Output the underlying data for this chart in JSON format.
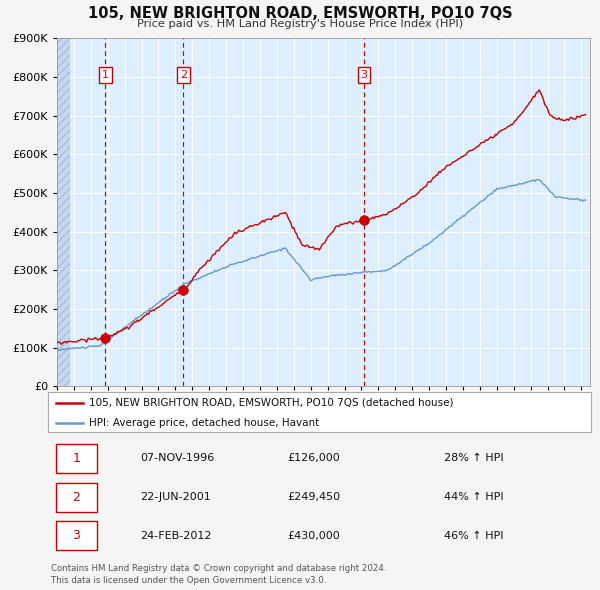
{
  "title": "105, NEW BRIGHTON ROAD, EMSWORTH, PO10 7QS",
  "subtitle": "Price paid vs. HM Land Registry's House Price Index (HPI)",
  "legend_property": "105, NEW BRIGHTON ROAD, EMSWORTH, PO10 7QS (detached house)",
  "legend_hpi": "HPI: Average price, detached house, Havant",
  "transactions": [
    {
      "num": 1,
      "date": "07-NOV-1996",
      "year": 1996.854,
      "price": 126000,
      "pct": "28%",
      "dir": "↑"
    },
    {
      "num": 2,
      "date": "22-JUN-2001",
      "year": 2001.472,
      "price": 249450,
      "pct": "44%",
      "dir": "↑"
    },
    {
      "num": 3,
      "date": "24-FEB-2012",
      "year": 2012.14,
      "price": 430000,
      "pct": "46%",
      "dir": "↑"
    }
  ],
  "copyright": "Contains HM Land Registry data © Crown copyright and database right 2024.\nThis data is licensed under the Open Government Licence v3.0.",
  "property_color": "#cc0000",
  "hpi_color": "#6699cc",
  "background_color": "#ddeeff",
  "fig_color": "#f5f5f5",
  "grid_color": "#ffffff",
  "vline_color": "#cc0000",
  "ylim": [
    0,
    900000
  ],
  "xlim_start": 1994.0,
  "xlim_end": 2025.5,
  "ylabel_ticks": [
    0,
    100000,
    200000,
    300000,
    400000,
    500000,
    600000,
    700000,
    800000,
    900000
  ],
  "price_fmt": "£{:,}"
}
